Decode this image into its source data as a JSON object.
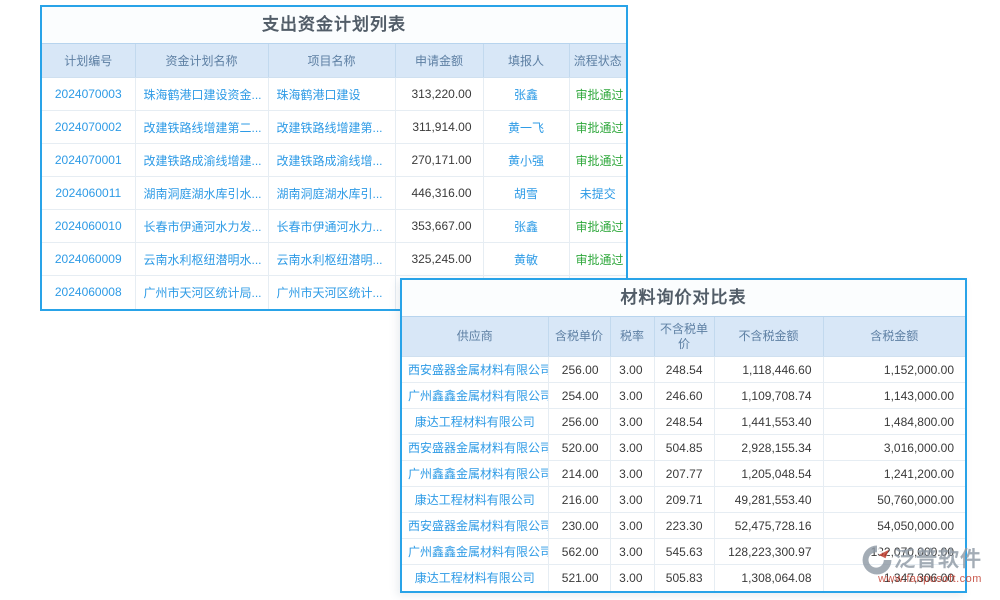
{
  "fund_plan_table": {
    "title": "支出资金计划列表",
    "columns": [
      {
        "key": "plan-id",
        "label": "计划编号",
        "type": "link"
      },
      {
        "key": "plan-name",
        "label": "资金计划名称",
        "type": "link-text"
      },
      {
        "key": "project-name",
        "label": "项目名称",
        "type": "link-text"
      },
      {
        "key": "amount",
        "label": "申请金额",
        "type": "number"
      },
      {
        "key": "reporter",
        "label": "填报人",
        "type": "link"
      },
      {
        "key": "status",
        "label": "流程状态",
        "type": "status"
      }
    ],
    "rows": [
      [
        "2024070003",
        "珠海鹤港口建设资金...",
        "珠海鹤港口建设",
        "313,220.00",
        "张鑫",
        "审批通过"
      ],
      [
        "2024070002",
        "改建铁路线增建第二...",
        "改建铁路线增建第...",
        "311,914.00",
        "黄一飞",
        "审批通过"
      ],
      [
        "2024070001",
        "改建铁路成渝线增建...",
        "改建铁路成渝线增...",
        "270,171.00",
        "黄小强",
        "审批通过"
      ],
      [
        "2024060011",
        "湖南洞庭湖水库引水...",
        "湖南洞庭湖水库引...",
        "446,316.00",
        "胡雪",
        "未提交"
      ],
      [
        "2024060010",
        "长春市伊通河水力发...",
        "长春市伊通河水力...",
        "353,667.00",
        "张鑫",
        "审批通过"
      ],
      [
        "2024060009",
        "云南水利枢纽潜明水...",
        "云南水利枢纽潜明...",
        "325,245.00",
        "黄敏",
        "审批通过"
      ],
      [
        "2024060008",
        "广州市天河区统计局...",
        "广州市天河区统计...",
        "",
        "",
        ""
      ]
    ]
  },
  "inquiry_table": {
    "title": "材料询价对比表",
    "columns": [
      {
        "key": "supplier",
        "label": "供应商",
        "type": "link"
      },
      {
        "key": "price-taxed",
        "label": "含税单价",
        "type": "number"
      },
      {
        "key": "tax-rate",
        "label": "税率",
        "type": "number"
      },
      {
        "key": "price-untaxed",
        "label": "不含税单价",
        "type": "number"
      },
      {
        "key": "amount-untaxed",
        "label": "不含税金额",
        "type": "number"
      },
      {
        "key": "amount-taxed",
        "label": "含税金额",
        "type": "number"
      }
    ],
    "rows": [
      [
        "西安盛器金属材料有限公司",
        "256.00",
        "3.00",
        "248.54",
        "1,118,446.60",
        "1,152,000.00"
      ],
      [
        "广州鑫鑫金属材料有限公司",
        "254.00",
        "3.00",
        "246.60",
        "1,109,708.74",
        "1,143,000.00"
      ],
      [
        "康达工程材料有限公司",
        "256.00",
        "3.00",
        "248.54",
        "1,441,553.40",
        "1,484,800.00"
      ],
      [
        "西安盛器金属材料有限公司",
        "520.00",
        "3.00",
        "504.85",
        "2,928,155.34",
        "3,016,000.00"
      ],
      [
        "广州鑫鑫金属材料有限公司",
        "214.00",
        "3.00",
        "207.77",
        "1,205,048.54",
        "1,241,200.00"
      ],
      [
        "康达工程材料有限公司",
        "216.00",
        "3.00",
        "209.71",
        "49,281,553.40",
        "50,760,000.00"
      ],
      [
        "西安盛器金属材料有限公司",
        "230.00",
        "3.00",
        "223.30",
        "52,475,728.16",
        "54,050,000.00"
      ],
      [
        "广州鑫鑫金属材料有限公司",
        "562.00",
        "3.00",
        "545.63",
        "128,223,300.97",
        "132,070,000.00"
      ],
      [
        "康达工程材料有限公司",
        "521.00",
        "3.00",
        "505.83",
        "1,308,064.08",
        "1,347,306.00"
      ]
    ]
  },
  "status_colors": {
    "审批通过": "#2fa83c",
    "未提交": "#2e9be6"
  },
  "accent_colors": {
    "border": "#29a3e8",
    "header_bg": "#d8e7f7",
    "link": "#2e9be6"
  },
  "watermark": {
    "brand": "泛普软件",
    "url": "www.fanpusoft.com"
  }
}
